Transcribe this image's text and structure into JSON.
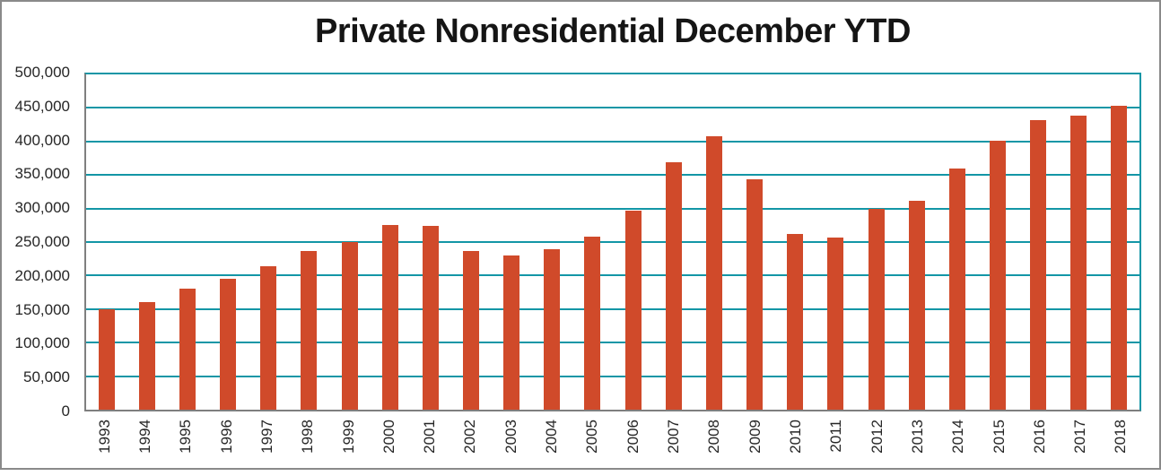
{
  "chart_data": {
    "type": "bar",
    "title": "Private Nonresidential December YTD",
    "xlabel": "",
    "ylabel": "",
    "categories": [
      "1993",
      "1994",
      "1995",
      "1996",
      "1997",
      "1998",
      "1999",
      "2000",
      "2001",
      "2002",
      "2003",
      "2004",
      "2005",
      "2006",
      "2007",
      "2008",
      "2009",
      "2010",
      "2011",
      "2012",
      "2013",
      "2014",
      "2015",
      "2016",
      "2017",
      "2018"
    ],
    "values": [
      150000,
      160000,
      181000,
      195000,
      214000,
      237000,
      250000,
      276000,
      274000,
      237000,
      230000,
      239000,
      258000,
      297000,
      369000,
      408000,
      344000,
      262000,
      257000,
      300000,
      312000,
      360000,
      401000,
      432000,
      438000,
      453000
    ],
    "ylim": [
      0,
      500000
    ],
    "ytick_interval": 50000,
    "ytick_labels": [
      "0",
      "50,000",
      "100,000",
      "150,000",
      "200,000",
      "250,000",
      "300,000",
      "350,000",
      "400,000",
      "450,000",
      "500,000"
    ],
    "grid": true,
    "legend": "none",
    "colors": {
      "bar": "#D04A2A",
      "gridline": "#1396A6",
      "axis_line": "#7F7F7F",
      "frame_border": "#8A8A8A",
      "title_text": "#151515",
      "tick_text": "#262626",
      "background": "#FFFFFF"
    }
  }
}
